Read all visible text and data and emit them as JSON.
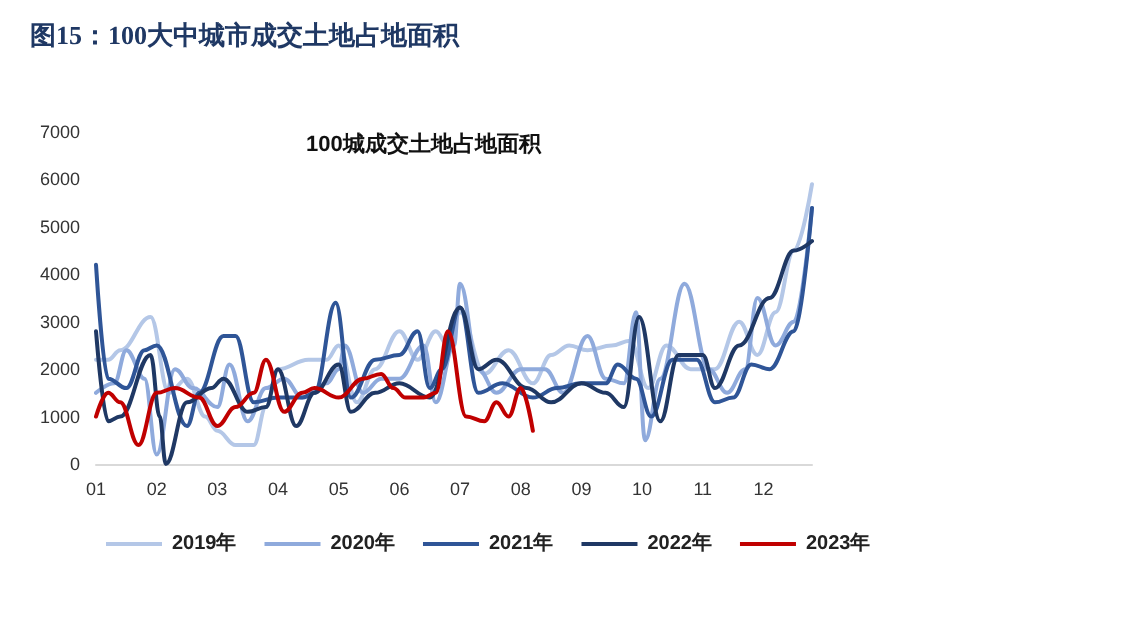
{
  "chart_data": {
    "type": "line",
    "title": "图15：100大中城市成交土地占地面积",
    "subtitle": "100城成交土地占地面积",
    "xlim": [
      1,
      12.8
    ],
    "xticks": [
      {
        "value": 1,
        "label": "01"
      },
      {
        "value": 2,
        "label": "02"
      },
      {
        "value": 3,
        "label": "03"
      },
      {
        "value": 4,
        "label": "04"
      },
      {
        "value": 5,
        "label": "05"
      },
      {
        "value": 6,
        "label": "06"
      },
      {
        "value": 7,
        "label": "07"
      },
      {
        "value": 8,
        "label": "08"
      },
      {
        "value": 9,
        "label": "09"
      },
      {
        "value": 10,
        "label": "10"
      },
      {
        "value": 11,
        "label": "11"
      },
      {
        "value": 12,
        "label": "12"
      }
    ],
    "ylim": [
      0,
      7000
    ],
    "yticks": [
      0,
      1000,
      2000,
      3000,
      4000,
      5000,
      6000,
      7000
    ],
    "grid": false,
    "legend": "bottom",
    "marker": "none",
    "line_style": "solid",
    "series": [
      {
        "name": "2019年",
        "color": "#b4c7e7",
        "x": [
          1.0,
          1.2,
          1.4,
          1.9,
          2.2,
          2.5,
          2.8,
          3.0,
          3.3,
          3.6,
          3.8,
          4.0,
          4.5,
          4.8,
          5.0,
          5.3,
          5.6,
          6.0,
          6.3,
          6.6,
          6.8,
          7.0,
          7.4,
          7.8,
          8.2,
          8.5,
          8.8,
          9.1,
          9.5,
          9.8,
          10.1,
          10.4,
          10.8,
          11.2,
          11.6,
          11.9,
          12.2,
          12.5,
          12.8
        ],
        "values": [
          2200,
          2200,
          2400,
          3100,
          1500,
          1800,
          1000,
          700,
          400,
          400,
          1200,
          2000,
          2200,
          2200,
          2500,
          1300,
          2000,
          2800,
          2200,
          2800,
          2500,
          3200,
          1900,
          2400,
          1700,
          2300,
          2500,
          2400,
          2500,
          2600,
          1600,
          2500,
          2000,
          2000,
          3000,
          2300,
          3200,
          4500,
          5900
        ]
      },
      {
        "name": "2020年",
        "color": "#8faadc",
        "x": [
          1.0,
          1.3,
          1.5,
          1.8,
          2.0,
          2.3,
          2.6,
          3.0,
          3.2,
          3.5,
          3.8,
          4.1,
          4.4,
          4.8,
          5.0,
          5.1,
          5.4,
          5.7,
          6.0,
          6.4,
          6.6,
          6.9,
          7.0,
          7.3,
          7.6,
          8.0,
          8.4,
          8.7,
          9.1,
          9.4,
          9.7,
          9.9,
          10.05,
          10.3,
          10.7,
          11.1,
          11.4,
          11.7,
          11.9,
          12.2,
          12.5,
          12.8
        ],
        "values": [
          1500,
          1700,
          2400,
          1800,
          200,
          2000,
          1600,
          1200,
          2100,
          900,
          1600,
          1800,
          1400,
          1700,
          2000,
          2500,
          1500,
          1800,
          1800,
          2500,
          1300,
          2500,
          3800,
          2000,
          1500,
          2000,
          2000,
          1500,
          2700,
          1800,
          1700,
          3200,
          500,
          1800,
          3800,
          2000,
          1500,
          2000,
          3500,
          2500,
          3000,
          5400
        ]
      },
      {
        "name": "2021年",
        "color": "#2f5597",
        "x": [
          1.0,
          1.2,
          1.5,
          1.8,
          2.0,
          2.5,
          2.7,
          3.1,
          3.3,
          3.6,
          4.0,
          4.4,
          4.6,
          4.95,
          5.2,
          5.6,
          6.0,
          6.3,
          6.5,
          6.7,
          7.0,
          7.3,
          7.7,
          8.2,
          8.6,
          9.0,
          9.4,
          9.6,
          9.9,
          10.15,
          10.5,
          10.9,
          11.2,
          11.5,
          11.8,
          12.1,
          12.5,
          12.8
        ],
        "values": [
          4200,
          1800,
          1600,
          2400,
          2500,
          800,
          1500,
          2700,
          2700,
          1300,
          1400,
          1400,
          1500,
          3400,
          1400,
          2200,
          2300,
          2800,
          1600,
          2000,
          3300,
          1500,
          1700,
          1400,
          1600,
          1700,
          1700,
          2100,
          1800,
          1000,
          2200,
          2200,
          1300,
          1400,
          2100,
          2000,
          2800,
          5400
        ]
      },
      {
        "name": "2022年",
        "color": "#1f3864",
        "x": [
          1.0,
          1.2,
          1.4,
          1.9,
          2.05,
          2.15,
          2.5,
          2.9,
          3.1,
          3.5,
          3.8,
          4.0,
          4.3,
          4.6,
          5.0,
          5.2,
          5.6,
          6.0,
          6.5,
          7.0,
          7.3,
          7.6,
          8.1,
          8.5,
          9.0,
          9.4,
          9.7,
          9.95,
          10.3,
          10.6,
          11.0,
          11.2,
          11.6,
          12.1,
          12.5,
          12.8
        ],
        "values": [
          2800,
          900,
          1000,
          2300,
          1000,
          0,
          1300,
          1600,
          1800,
          1100,
          1200,
          2000,
          800,
          1500,
          2100,
          1100,
          1500,
          1700,
          1400,
          3300,
          2000,
          2200,
          1600,
          1300,
          1700,
          1500,
          1200,
          3100,
          900,
          2300,
          2300,
          1600,
          2500,
          3500,
          4500,
          4700
        ]
      },
      {
        "name": "2023年",
        "color": "#c00000",
        "x": [
          1.0,
          1.2,
          1.4,
          1.7,
          2.0,
          2.3,
          2.7,
          3.0,
          3.3,
          3.6,
          3.8,
          4.1,
          4.4,
          4.6,
          5.0,
          5.4,
          5.7,
          5.9,
          6.1,
          6.4,
          6.6,
          6.8,
          7.1,
          7.4,
          7.6,
          7.8,
          8.0,
          8.2
        ],
        "values": [
          1000,
          1500,
          1300,
          400,
          1500,
          1600,
          1400,
          800,
          1200,
          1500,
          2200,
          1100,
          1500,
          1600,
          1400,
          1800,
          1900,
          1600,
          1400,
          1400,
          1500,
          2800,
          1000,
          900,
          1300,
          1000,
          1600,
          700
        ]
      }
    ]
  }
}
